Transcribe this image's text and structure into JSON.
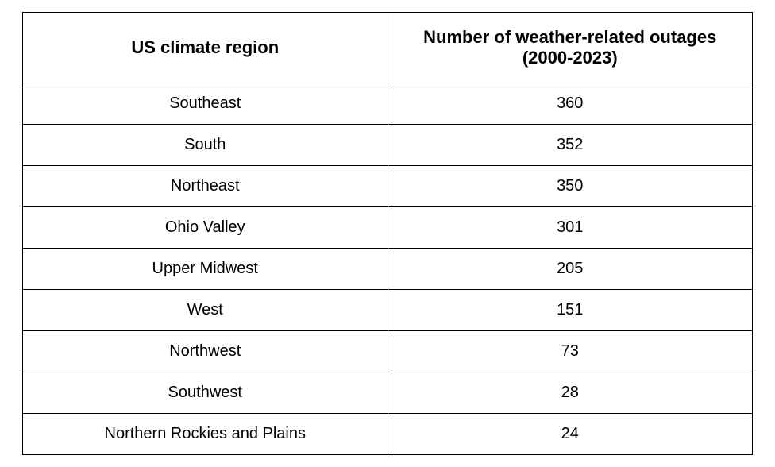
{
  "table": {
    "type": "table",
    "background_color": "#ffffff",
    "border_color": "#000000",
    "text_color": "#000000",
    "header_fontsize": 22,
    "cell_fontsize": 20,
    "columns": [
      {
        "label": "US climate region",
        "width_pct": 50,
        "align": "center"
      },
      {
        "label": "Number of weather-related outages (2000-2023)",
        "width_pct": 50,
        "align": "center"
      }
    ],
    "rows": [
      {
        "region": "Southeast",
        "count": "360"
      },
      {
        "region": "South",
        "count": "352"
      },
      {
        "region": "Northeast",
        "count": "350"
      },
      {
        "region": "Ohio Valley",
        "count": "301"
      },
      {
        "region": "Upper Midwest",
        "count": "205"
      },
      {
        "region": "West",
        "count": "151"
      },
      {
        "region": "Northwest",
        "count": "73"
      },
      {
        "region": "Southwest",
        "count": "28"
      },
      {
        "region": "Northern Rockies and Plains",
        "count": "24"
      }
    ]
  }
}
